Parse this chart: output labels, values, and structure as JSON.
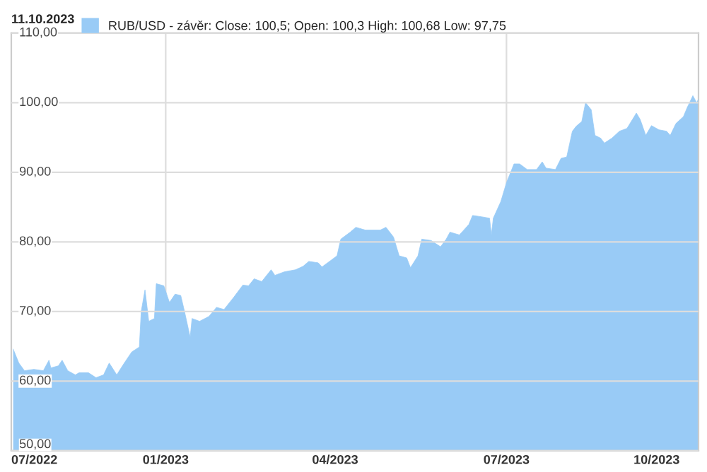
{
  "chart_data": {
    "type": "area",
    "title": "11.10.2023",
    "x": [
      "2022-10-12",
      "2022-10-15",
      "2022-10-18",
      "2022-10-23",
      "2022-10-28",
      "2022-10-31",
      "2022-11-01",
      "2022-11-05",
      "2022-11-07",
      "2022-11-10",
      "2022-11-14",
      "2022-11-16",
      "2022-11-21",
      "2022-11-25",
      "2022-11-29",
      "2022-12-02",
      "2022-12-06",
      "2022-12-10",
      "2022-12-14",
      "2022-12-18",
      "2022-12-19",
      "2022-12-21",
      "2022-12-23",
      "2022-12-26",
      "2022-12-27",
      "2022-12-31",
      "2023-01-03",
      "2023-01-06",
      "2023-01-09",
      "2023-01-11",
      "2023-01-14",
      "2023-01-15",
      "2023-01-19",
      "2023-01-24",
      "2023-01-28",
      "2023-02-01",
      "2023-02-06",
      "2023-02-11",
      "2023-02-14",
      "2023-02-17",
      "2023-02-21",
      "2023-02-26",
      "2023-02-28",
      "2023-03-05",
      "2023-03-11",
      "2023-03-15",
      "2023-03-18",
      "2023-03-23",
      "2023-03-25",
      "2023-03-30",
      "2023-04-02",
      "2023-04-04",
      "2023-04-09",
      "2023-04-12",
      "2023-04-17",
      "2023-04-25",
      "2023-04-28",
      "2023-05-02",
      "2023-05-05",
      "2023-05-09",
      "2023-05-11",
      "2023-05-15",
      "2023-05-17",
      "2023-05-22",
      "2023-05-27",
      "2023-05-30",
      "2023-06-01",
      "2023-06-06",
      "2023-06-11",
      "2023-06-13",
      "2023-06-18",
      "2023-06-22",
      "2023-06-23",
      "2023-06-24",
      "2023-06-28",
      "2023-07-01",
      "2023-07-05",
      "2023-07-08",
      "2023-07-12",
      "2023-07-17",
      "2023-07-20",
      "2023-07-22",
      "2023-07-27",
      "2023-07-30",
      "2023-08-02",
      "2023-08-05",
      "2023-08-07",
      "2023-08-10",
      "2023-08-12",
      "2023-08-15",
      "2023-08-17",
      "2023-08-20",
      "2023-08-22",
      "2023-08-26",
      "2023-08-30",
      "2023-09-03",
      "2023-09-08",
      "2023-09-10",
      "2023-09-13",
      "2023-09-16",
      "2023-09-20",
      "2023-09-24",
      "2023-09-26",
      "2023-09-29",
      "2023-10-03",
      "2023-10-05",
      "2023-10-08",
      "2023-10-10",
      "2023-10-11"
    ],
    "series": [
      {
        "name": "RUB/USD - závěr: Close: 100,5; Open: 100,3 High: 100,68 Low: 97,75",
        "color": "#99cbf6",
        "values": [
          64.6,
          62.6,
          61.5,
          61.7,
          61.5,
          63.0,
          61.9,
          62.2,
          63.0,
          61.5,
          60.9,
          61.2,
          61.2,
          60.5,
          60.9,
          62.6,
          60.9,
          62.6,
          64.2,
          64.9,
          70.0,
          73.1,
          68.6,
          69.0,
          74.0,
          73.7,
          71.3,
          72.5,
          72.3,
          70.0,
          66.3,
          69.0,
          68.6,
          69.3,
          70.6,
          70.3,
          72.0,
          73.8,
          73.7,
          74.7,
          74.3,
          76.0,
          75.2,
          75.7,
          76.0,
          76.5,
          77.2,
          77.0,
          76.4,
          77.4,
          78.0,
          80.4,
          81.4,
          82.1,
          81.7,
          81.7,
          82.1,
          80.7,
          78.0,
          77.7,
          76.3,
          78.0,
          80.4,
          80.2,
          79.3,
          80.4,
          81.4,
          81.0,
          82.5,
          83.8,
          83.6,
          83.4,
          81.0,
          83.4,
          85.8,
          88.5,
          91.2,
          91.2,
          90.4,
          90.4,
          91.5,
          90.6,
          90.4,
          92.0,
          92.2,
          95.9,
          96.6,
          97.3,
          100.0,
          99.0,
          95.3,
          94.9,
          94.2,
          94.9,
          95.9,
          96.3,
          98.5,
          97.6,
          95.3,
          96.7,
          96.1,
          95.9,
          95.3,
          97.0,
          98.0,
          99.3,
          101.0,
          100.0,
          100.5
        ]
      }
    ],
    "xlim": [
      "2022-10-11",
      "2023-10-11"
    ],
    "xticks": [
      {
        "value": "2022-10-11",
        "label": "07/2022"
      },
      {
        "value": "2023-01-01",
        "label": "01/2023"
      },
      {
        "value": "2023-04-01",
        "label": "04/2023"
      },
      {
        "value": "2023-07-01",
        "label": "07/2023"
      },
      {
        "value": "2023-10-01",
        "label": "10/2023"
      }
    ],
    "ylim": [
      50,
      110
    ],
    "yticks": [
      {
        "value": 50,
        "label": "50,00"
      },
      {
        "value": 60,
        "label": "60,00"
      },
      {
        "value": 70,
        "label": "70,00"
      },
      {
        "value": 80,
        "label": "80,00"
      },
      {
        "value": 90,
        "label": "90,00"
      },
      {
        "value": 100,
        "label": "100,00"
      },
      {
        "value": 110,
        "label": "110,00"
      }
    ],
    "ref_lines": [
      {
        "axis": "x",
        "value": "2023-01-01",
        "color": "#dddddd"
      },
      {
        "axis": "x",
        "value": "2023-07-01",
        "color": "#dddddd"
      }
    ],
    "grid": "y",
    "legend": "top left"
  }
}
